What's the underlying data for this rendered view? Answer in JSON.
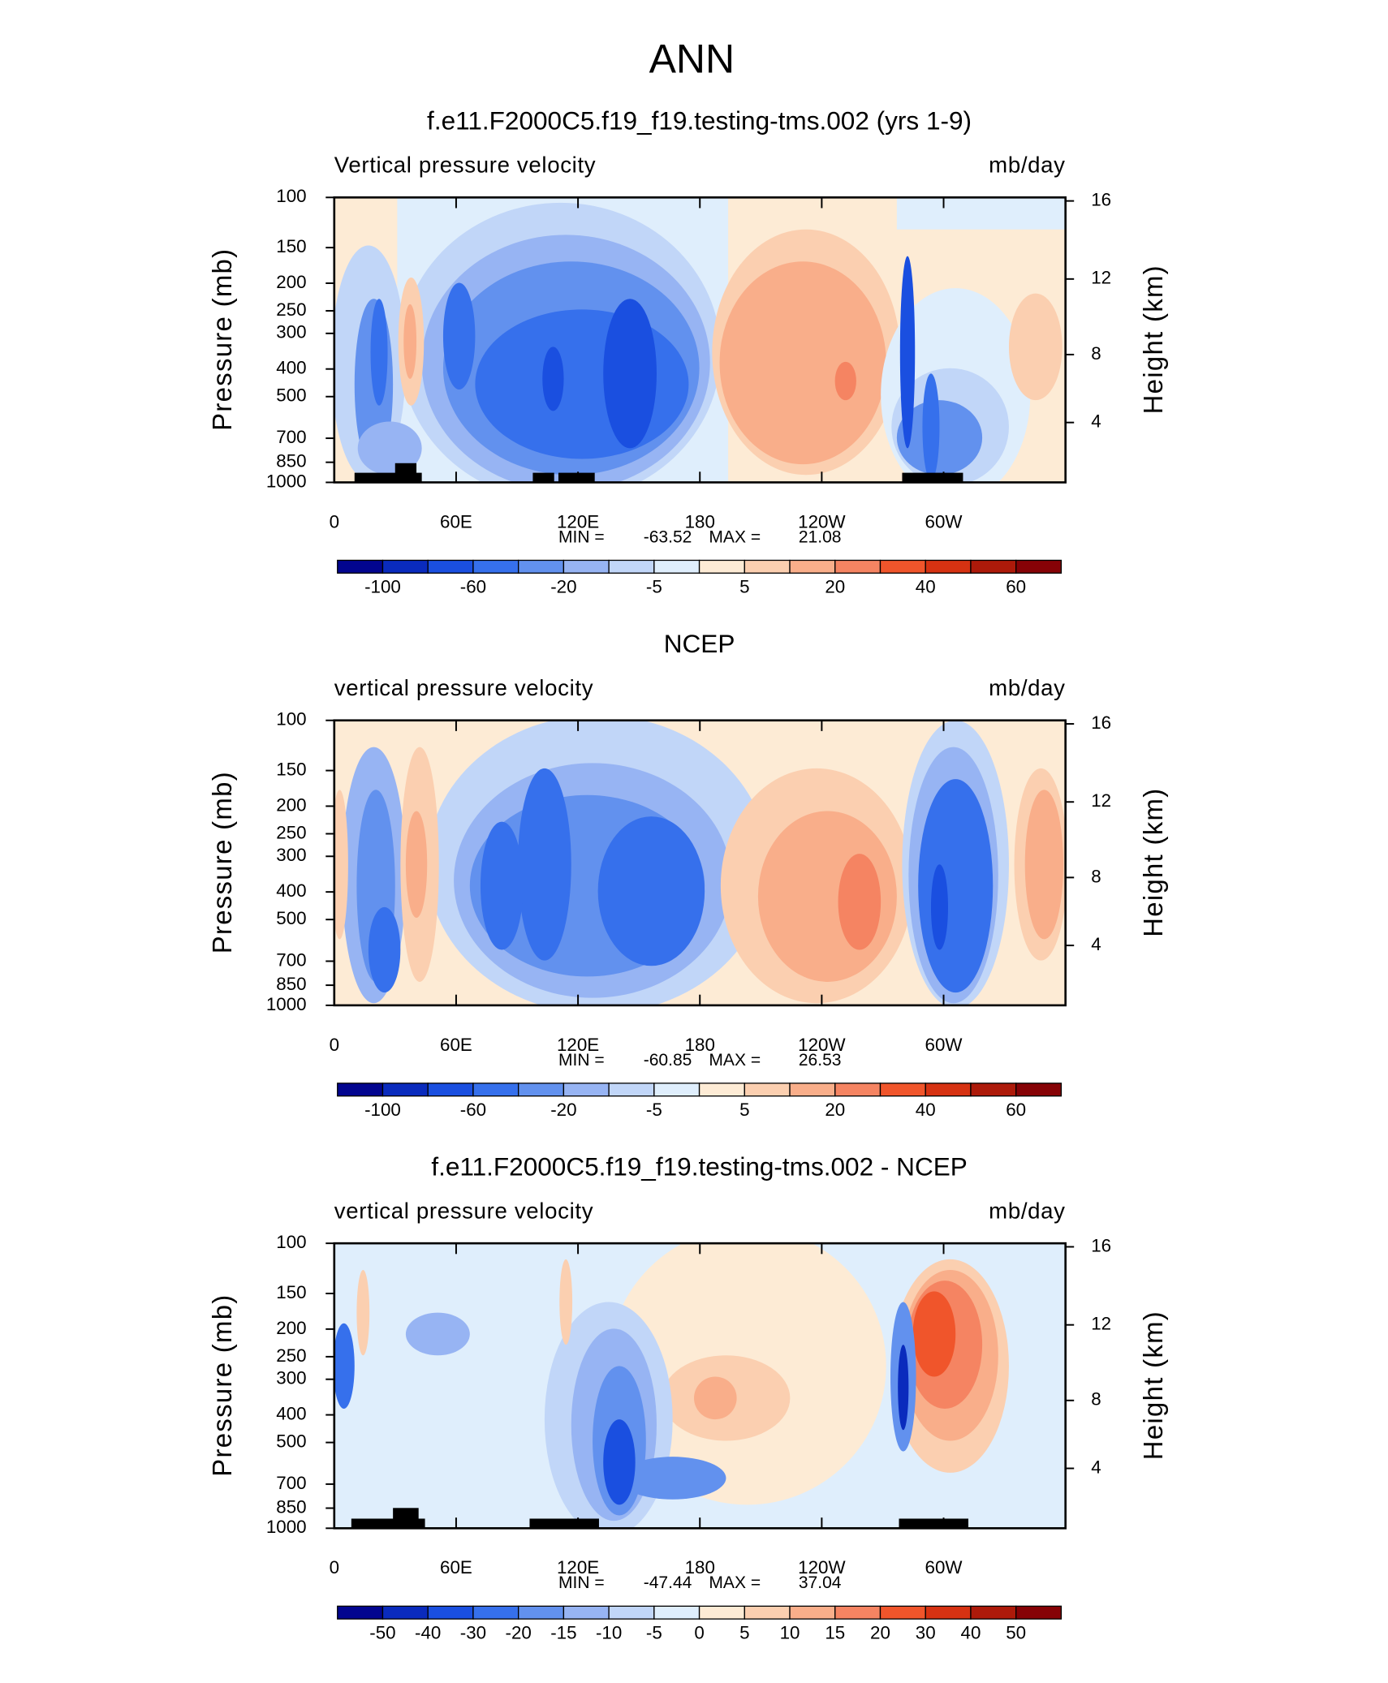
{
  "title": "ANN",
  "chart_data": [
    {
      "type": "contour",
      "title": "f.e11.F2000C5.f19_f19.testing-tms.002 (yrs 1-9)",
      "subtitle": "Vertical pressure velocity",
      "units": "mb/day",
      "ylabel": "Pressure (mb)",
      "y2label": "Height (km)",
      "yscale": "log",
      "ylim": [
        1000,
        100
      ],
      "yticks": [
        100,
        150,
        200,
        250,
        300,
        400,
        500,
        700,
        850,
        1000
      ],
      "y2ticks": [
        4,
        8,
        12,
        16
      ],
      "xlim": [
        0,
        360
      ],
      "xticks": [
        0,
        {
          "value": 60,
          "label": "60E"
        },
        {
          "value": 120,
          "label": "120E"
        },
        180,
        {
          "value": 240,
          "label": "120W"
        },
        {
          "value": 300,
          "label": "60W"
        }
      ],
      "min_label": "MIN =",
      "min": -63.52,
      "max_label": "MAX =",
      "max": 21.08,
      "colorbar": {
        "colors": [
          "#02058f",
          "#0a2bbd",
          "#1a4fe0",
          "#3670ec",
          "#6291ee",
          "#97b4f3",
          "#c1d6f8",
          "#dfeefc",
          "#fdebd5",
          "#fbcfb0",
          "#f9ae8a",
          "#f58462",
          "#f0552b",
          "#d63212",
          "#ad1a0a",
          "#860206"
        ],
        "labels": [
          -100,
          -60,
          -20,
          -5,
          5,
          20,
          40,
          60
        ]
      }
    },
    {
      "type": "contour",
      "title": "NCEP",
      "subtitle": "vertical pressure velocity",
      "units": "mb/day",
      "ylabel": "Pressure (mb)",
      "y2label": "Height (km)",
      "yscale": "log",
      "ylim": [
        1000,
        100
      ],
      "yticks": [
        100,
        150,
        200,
        250,
        300,
        400,
        500,
        700,
        850,
        1000
      ],
      "y2ticks": [
        4,
        8,
        12,
        16
      ],
      "xlim": [
        0,
        360
      ],
      "xticks": [
        0,
        {
          "value": 60,
          "label": "60E"
        },
        {
          "value": 120,
          "label": "120E"
        },
        180,
        {
          "value": 240,
          "label": "120W"
        },
        {
          "value": 300,
          "label": "60W"
        }
      ],
      "min_label": "MIN =",
      "min": -60.85,
      "max_label": "MAX =",
      "max": 26.53,
      "colorbar": {
        "colors": [
          "#02058f",
          "#0a2bbd",
          "#1a4fe0",
          "#3670ec",
          "#6291ee",
          "#97b4f3",
          "#c1d6f8",
          "#dfeefc",
          "#fdebd5",
          "#fbcfb0",
          "#f9ae8a",
          "#f58462",
          "#f0552b",
          "#d63212",
          "#ad1a0a",
          "#860206"
        ],
        "labels": [
          -100,
          -60,
          -20,
          -5,
          5,
          20,
          40,
          60
        ]
      }
    },
    {
      "type": "contour",
      "title": "f.e11.F2000C5.f19_f19.testing-tms.002 - NCEP",
      "subtitle": "vertical pressure velocity",
      "units": "mb/day",
      "ylabel": "Pressure (mb)",
      "y2label": "Height (km)",
      "yscale": "log",
      "ylim": [
        1000,
        100
      ],
      "yticks": [
        100,
        150,
        200,
        250,
        300,
        400,
        500,
        700,
        850,
        1000
      ],
      "y2ticks": [
        4,
        8,
        12,
        16
      ],
      "xlim": [
        0,
        360
      ],
      "xticks": [
        0,
        {
          "value": 60,
          "label": "60E"
        },
        {
          "value": 120,
          "label": "120E"
        },
        180,
        {
          "value": 240,
          "label": "120W"
        },
        {
          "value": 300,
          "label": "60W"
        }
      ],
      "min_label": "MIN =",
      "min": -47.44,
      "max_label": "MAX =",
      "max": 37.04,
      "colorbar": {
        "colors": [
          "#02058f",
          "#0a2bbd",
          "#1a4fe0",
          "#3670ec",
          "#6291ee",
          "#97b4f3",
          "#c1d6f8",
          "#dfeefc",
          "#fdebd5",
          "#fbcfb0",
          "#f9ae8a",
          "#f58462",
          "#f0552b",
          "#d63212",
          "#ad1a0a",
          "#860206"
        ],
        "labels": [
          -50,
          -40,
          -30,
          -20,
          -15,
          -10,
          -5,
          0,
          5,
          10,
          15,
          20,
          30,
          40,
          50
        ]
      }
    }
  ]
}
